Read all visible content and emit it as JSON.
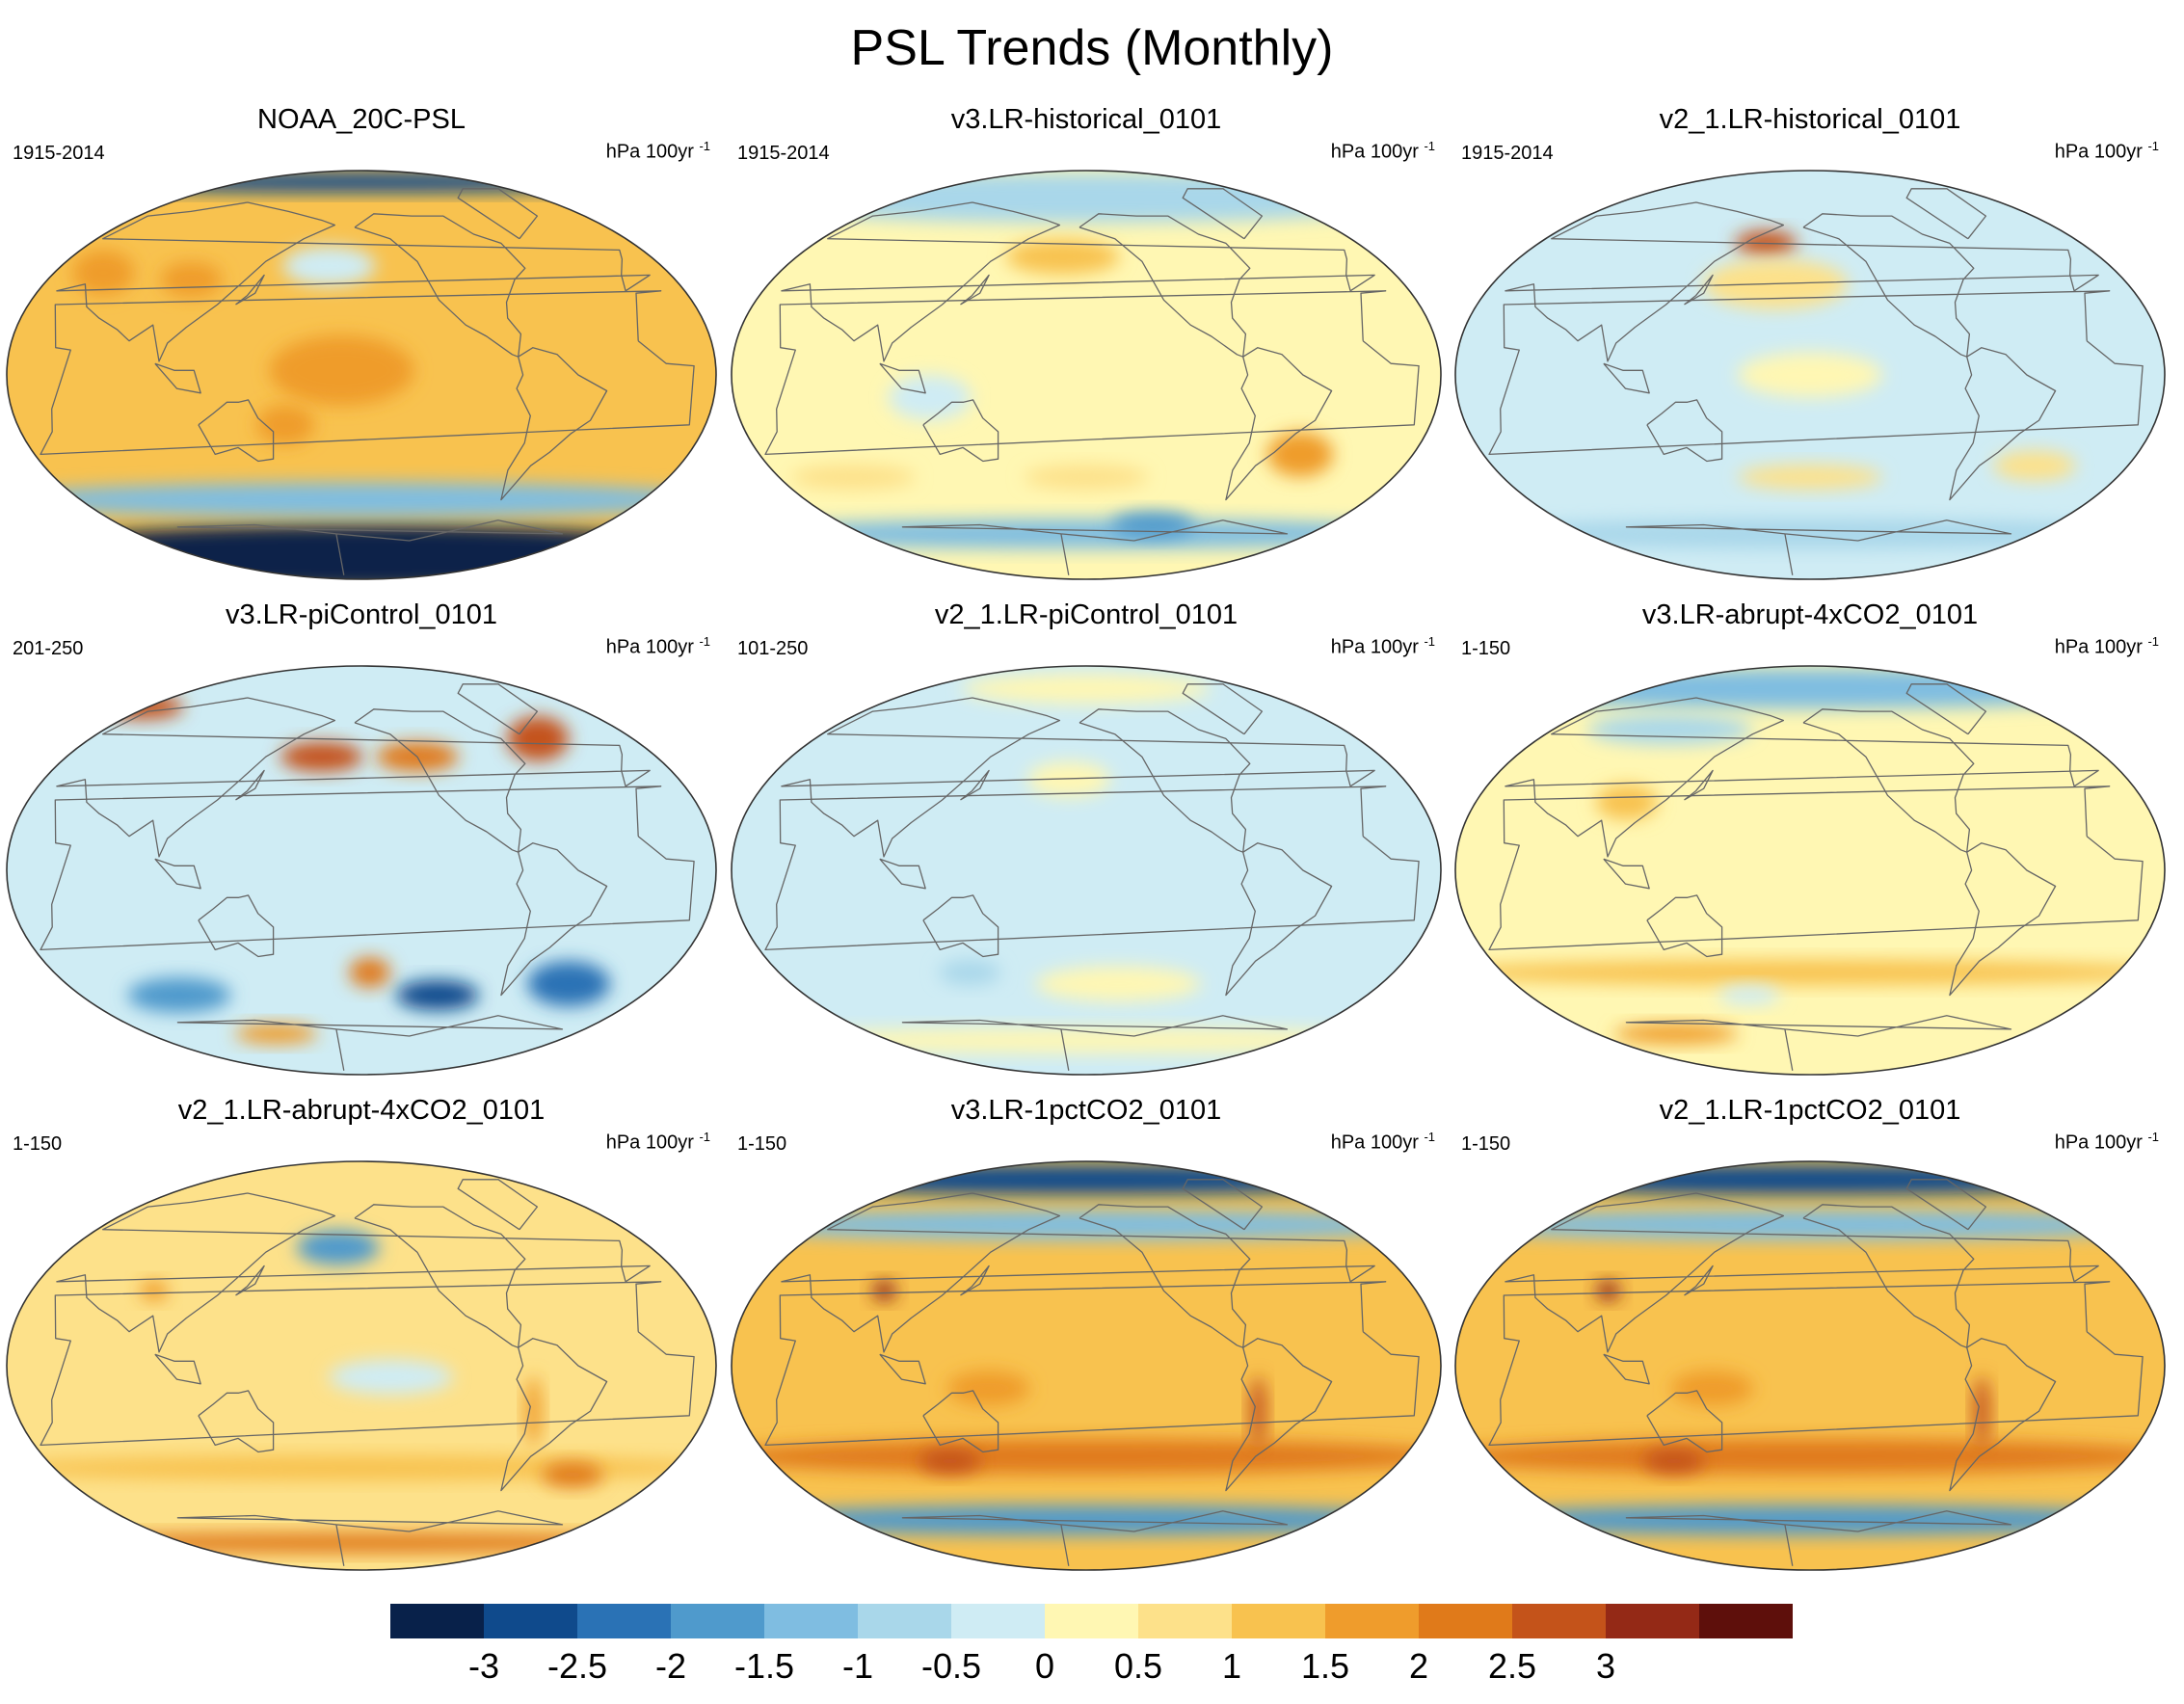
{
  "figure_title": "PSL Trends (Monthly)",
  "units_text": "hPa 100yr",
  "units_exponent": "-1",
  "colors": {
    "bins": [
      "#08214a",
      "#0f4a8c",
      "#2a72b5",
      "#4f9acc",
      "#7fbde1",
      "#a9d7ea",
      "#cfecf4",
      "#fff7b3",
      "#fde18a",
      "#f8c24f",
      "#ef9c2c",
      "#e07a1a",
      "#c4531a",
      "#942916",
      "#5e0f0b"
    ],
    "coast": "#666666",
    "map_edge": "#333333"
  },
  "chart_data": [
    {
      "type": "contour-map",
      "title": "NOAA_20C-PSL",
      "period": "1915-2014",
      "units": "hPa 100yr-1",
      "background": 1.2,
      "features": [
        {
          "region": "Antarctic / Southern Ocean",
          "lon": 0,
          "lat": -80,
          "lon_width": 360,
          "lat_width": 26,
          "value": -3.5
        },
        {
          "region": "Southern mid-latitude band",
          "lon": 0,
          "lat": -55,
          "lon_width": 360,
          "lat_width": 14,
          "value": -1.2
        },
        {
          "region": "Arctic band",
          "lon": 0,
          "lat": 85,
          "lon_width": 360,
          "lat_width": 8,
          "value": -2.8
        },
        {
          "region": "North Pacific",
          "lon": 180,
          "lat": 48,
          "lon_width": 45,
          "lat_width": 16,
          "value": -0.4
        },
        {
          "region": "Central Pacific",
          "lon": 190,
          "lat": 2,
          "lon_width": 70,
          "lat_width": 28,
          "value": 1.8
        },
        {
          "region": "Southwest Pacific",
          "lon": 160,
          "lat": -22,
          "lon_width": 28,
          "lat_width": 16,
          "value": 1.9
        },
        {
          "region": "Eastern Europe",
          "lon": 45,
          "lat": 45,
          "lon_width": 30,
          "lat_width": 18,
          "value": 1.7
        },
        {
          "region": "Central Asia",
          "lon": 100,
          "lat": 42,
          "lon_width": 30,
          "lat_width": 14,
          "value": 1.5
        }
      ]
    },
    {
      "type": "contour-map",
      "title": "v3.LR-historical_0101",
      "period": "1915-2014",
      "units": "hPa 100yr-1",
      "background": 0.3,
      "features": [
        {
          "region": "Arctic",
          "lon": 0,
          "lat": 78,
          "lon_width": 360,
          "lat_width": 20,
          "value": -0.6
        },
        {
          "region": "Southern Ocean",
          "lon": 0,
          "lat": -70,
          "lon_width": 360,
          "lat_width": 12,
          "value": -1.2
        },
        {
          "region": "Ross Sea",
          "lon": 250,
          "lat": -66,
          "lon_width": 40,
          "lat_width": 10,
          "value": -2.0
        },
        {
          "region": "Aleutian",
          "lon": 185,
          "lat": 52,
          "lon_width": 55,
          "lat_width": 14,
          "value": 1.4
        },
        {
          "region": "South Atlantic",
          "lon": 320,
          "lat": -35,
          "lon_width": 32,
          "lat_width": 18,
          "value": 1.5
        },
        {
          "region": "Southern Indian Ocean",
          "lon": 60,
          "lat": -45,
          "lon_width": 60,
          "lat_width": 10,
          "value": 0.9
        },
        {
          "region": "South Pacific",
          "lon": 200,
          "lat": -45,
          "lon_width": 60,
          "lat_width": 10,
          "value": 0.9
        },
        {
          "region": "Maritime Continent",
          "lon": 120,
          "lat": -10,
          "lon_width": 40,
          "lat_width": 18,
          "value": -0.3
        }
      ]
    },
    {
      "type": "contour-map",
      "title": "v2_1.LR-historical_0101",
      "period": "1915-2014",
      "units": "hPa 100yr-1",
      "background": -0.2,
      "features": [
        {
          "region": "Aleutian",
          "lon": 170,
          "lat": 58,
          "lon_width": 30,
          "lat_width": 10,
          "value": 2.6
        },
        {
          "region": "North Pacific",
          "lon": 180,
          "lat": 40,
          "lon_width": 70,
          "lat_width": 20,
          "value": 0.6
        },
        {
          "region": "Southern Ocean",
          "lon": 0,
          "lat": -70,
          "lon_width": 360,
          "lat_width": 12,
          "value": -1.0
        },
        {
          "region": "South Atlantic",
          "lon": 330,
          "lat": -40,
          "lon_width": 40,
          "lat_width": 12,
          "value": 0.6
        },
        {
          "region": "Southern mid-latitudes",
          "lon": 200,
          "lat": -45,
          "lon_width": 70,
          "lat_width": 10,
          "value": 0.6
        },
        {
          "region": "Central Pacific",
          "lon": 200,
          "lat": 0,
          "lon_width": 70,
          "lat_width": 18,
          "value": 0.3
        }
      ]
    },
    {
      "type": "contour-map",
      "title": "v3.LR-piControl_0101",
      "period": "201-250",
      "units": "hPa 100yr-1",
      "background": -0.3,
      "features": [
        {
          "region": "North Atlantic / Greenland",
          "lon": 320,
          "lat": 58,
          "lon_width": 30,
          "lat_width": 18,
          "value": 2.9
        },
        {
          "region": "North Pacific",
          "lon": 175,
          "lat": 50,
          "lon_width": 40,
          "lat_width": 12,
          "value": 2.6
        },
        {
          "region": "North America",
          "lon": 235,
          "lat": 50,
          "lon_width": 40,
          "lat_width": 12,
          "value": 2.2
        },
        {
          "region": "Scandinavia",
          "lon": 20,
          "lat": 72,
          "lon_width": 40,
          "lat_width": 10,
          "value": 2.6
        },
        {
          "region": "Southern Ocean (Pacific)",
          "lon": 250,
          "lat": -55,
          "lon_width": 40,
          "lat_width": 12,
          "value": -3.0
        },
        {
          "region": "Southern Ocean (Atlantic)",
          "lon": 330,
          "lat": -50,
          "lon_width": 40,
          "lat_width": 18,
          "value": -2.2
        },
        {
          "region": "Southern Indian Ocean",
          "lon": 80,
          "lat": -55,
          "lon_width": 50,
          "lat_width": 14,
          "value": -1.8
        },
        {
          "region": "South Pacific",
          "lon": 205,
          "lat": -45,
          "lon_width": 20,
          "lat_width": 12,
          "value": 2.3
        },
        {
          "region": "Antarctic coast",
          "lon": 130,
          "lat": -72,
          "lon_width": 40,
          "lat_width": 8,
          "value": 1.6
        }
      ]
    },
    {
      "type": "contour-map",
      "title": "v2_1.LR-piControl_0101",
      "period": "101-250",
      "units": "hPa 100yr-1",
      "background": -0.1,
      "features": [
        {
          "region": "Arctic",
          "lon": 200,
          "lat": 80,
          "lon_width": 120,
          "lat_width": 12,
          "value": 0.3
        },
        {
          "region": "North Pacific",
          "lon": 190,
          "lat": 40,
          "lon_width": 40,
          "lat_width": 14,
          "value": 0.3
        },
        {
          "region": "South Pacific",
          "lon": 220,
          "lat": -50,
          "lon_width": 80,
          "lat_width": 14,
          "value": 0.3
        },
        {
          "region": "South of Australia",
          "lon": 130,
          "lat": -45,
          "lon_width": 30,
          "lat_width": 10,
          "value": -0.7
        },
        {
          "region": "Antarctic",
          "lon": 0,
          "lat": -75,
          "lon_width": 360,
          "lat_width": 10,
          "value": 0.3
        }
      ]
    },
    {
      "type": "contour-map",
      "title": "v3.LR-abrupt-4xCO2_0101",
      "period": "1-150",
      "units": "hPa 100yr-1",
      "background": 0.3,
      "features": [
        {
          "region": "Arctic",
          "lon": 0,
          "lat": 80,
          "lon_width": 360,
          "lat_width": 16,
          "value": -1.2
        },
        {
          "region": "Northern Asia",
          "lon": 100,
          "lat": 62,
          "lon_width": 80,
          "lat_width": 12,
          "value": -0.6
        },
        {
          "region": "East Asia",
          "lon": 100,
          "lat": 30,
          "lon_width": 30,
          "lat_width": 14,
          "value": 1.2
        },
        {
          "region": "Southern mid-latitudes",
          "lon": 0,
          "lat": -45,
          "lon_width": 360,
          "lat_width": 10,
          "value": 1.0
        },
        {
          "region": "Antarctic",
          "lon": 90,
          "lat": -72,
          "lon_width": 60,
          "lat_width": 8,
          "value": 1.8
        },
        {
          "region": "South of Australia",
          "lon": 160,
          "lat": -55,
          "lon_width": 30,
          "lat_width": 8,
          "value": -0.5
        }
      ]
    },
    {
      "type": "contour-map",
      "title": "v2_1.LR-abrupt-4xCO2_0101",
      "period": "1-150",
      "units": "hPa 100yr-1",
      "background": 0.5,
      "features": [
        {
          "region": "North Pacific",
          "lon": 185,
          "lat": 52,
          "lon_width": 40,
          "lat_width": 14,
          "value": -1.7
        },
        {
          "region": "Central Pacific",
          "lon": 215,
          "lat": -5,
          "lon_width": 60,
          "lat_width": 14,
          "value": -0.3
        },
        {
          "region": "Tibet",
          "lon": 85,
          "lat": 33,
          "lon_width": 14,
          "lat_width": 8,
          "value": 1.8
        },
        {
          "region": "Andes",
          "lon": 290,
          "lat": -20,
          "lon_width": 8,
          "lat_width": 28,
          "value": 1.6
        },
        {
          "region": "Southern mid-latitudes",
          "lon": 0,
          "lat": -45,
          "lon_width": 360,
          "lat_width": 10,
          "value": 1.2
        },
        {
          "region": "South Atlantic",
          "lon": 330,
          "lat": -48,
          "lon_width": 30,
          "lat_width": 10,
          "value": 2.0
        },
        {
          "region": "Antarctic",
          "lon": 0,
          "lat": -78,
          "lon_width": 360,
          "lat_width": 8,
          "value": 2.3
        }
      ]
    },
    {
      "type": "contour-map",
      "title": "v3.LR-1pctCO2_0101",
      "period": "1-150",
      "units": "hPa 100yr-1",
      "background": 1.2,
      "features": [
        {
          "region": "Arctic",
          "lon": 0,
          "lat": 82,
          "lon_width": 360,
          "lat_width": 12,
          "value": -2.8
        },
        {
          "region": "Northern high latitudes",
          "lon": 0,
          "lat": 62,
          "lon_width": 360,
          "lat_width": 12,
          "value": -1.3
        },
        {
          "region": "Southern Ocean",
          "lon": 0,
          "lat": -68,
          "lon_width": 360,
          "lat_width": 12,
          "value": -1.8
        },
        {
          "region": "Southern mid-latitudes",
          "lon": 0,
          "lat": -40,
          "lon_width": 360,
          "lat_width": 14,
          "value": 2.0
        },
        {
          "region": "South of Australia",
          "lon": 120,
          "lat": -42,
          "lon_width": 30,
          "lat_width": 10,
          "value": 2.6
        },
        {
          "region": "Tibet",
          "lon": 88,
          "lat": 33,
          "lon_width": 12,
          "lat_width": 8,
          "value": 3.0
        },
        {
          "region": "Andes",
          "lon": 290,
          "lat": -20,
          "lon_width": 8,
          "lat_width": 28,
          "value": 2.8
        },
        {
          "region": "Southwest Pacific",
          "lon": 150,
          "lat": -10,
          "lon_width": 40,
          "lat_width": 14,
          "value": 1.8
        }
      ]
    },
    {
      "type": "contour-map",
      "title": "v2_1.LR-1pctCO2_0101",
      "period": "1-150",
      "units": "hPa 100yr-1",
      "background": 1.2,
      "features": [
        {
          "region": "Arctic",
          "lon": 0,
          "lat": 82,
          "lon_width": 360,
          "lat_width": 12,
          "value": -2.6
        },
        {
          "region": "Northern high latitudes",
          "lon": 0,
          "lat": 62,
          "lon_width": 360,
          "lat_width": 12,
          "value": -1.2
        },
        {
          "region": "Southern Ocean",
          "lon": 0,
          "lat": -68,
          "lon_width": 360,
          "lat_width": 12,
          "value": -1.8
        },
        {
          "region": "Southern mid-latitudes",
          "lon": 0,
          "lat": -40,
          "lon_width": 360,
          "lat_width": 14,
          "value": 2.0
        },
        {
          "region": "South of Australia",
          "lon": 120,
          "lat": -42,
          "lon_width": 30,
          "lat_width": 10,
          "value": 2.8
        },
        {
          "region": "Tibet",
          "lon": 88,
          "lat": 33,
          "lon_width": 12,
          "lat_width": 8,
          "value": 3.0
        },
        {
          "region": "Andes",
          "lon": 290,
          "lat": -20,
          "lon_width": 8,
          "lat_width": 28,
          "value": 2.8
        },
        {
          "region": "Southwest Pacific",
          "lon": 150,
          "lat": -10,
          "lon_width": 40,
          "lat_width": 14,
          "value": 1.8
        }
      ]
    }
  ],
  "colorbar": {
    "levels": [
      -3,
      -2.5,
      -2,
      -1.5,
      -1,
      -0.5,
      0,
      0.5,
      1,
      1.5,
      2,
      2.5,
      3
    ],
    "labels": [
      "-3",
      "-2.5",
      "-2",
      "-1.5",
      "-1",
      "-0.5",
      "0",
      "0.5",
      "1",
      "1.5",
      "2",
      "2.5",
      "3"
    ]
  }
}
